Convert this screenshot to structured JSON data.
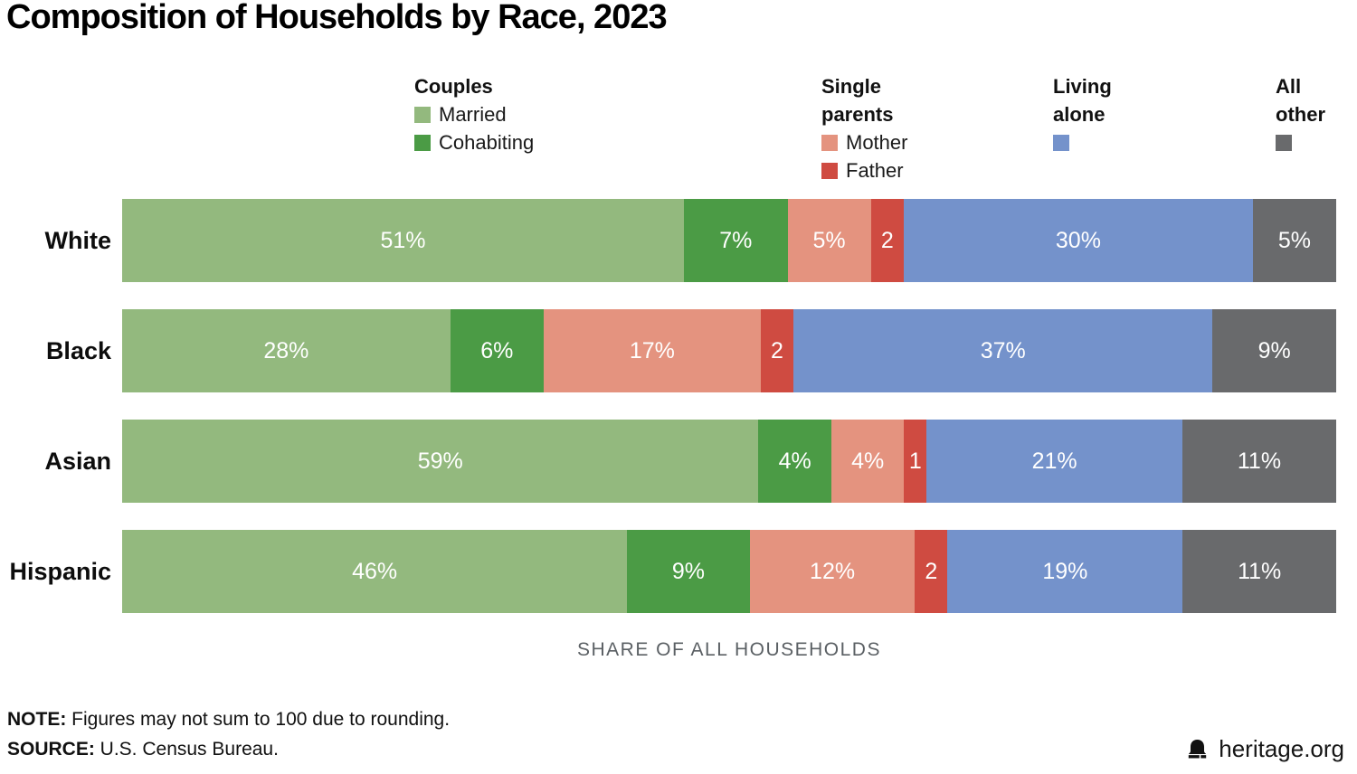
{
  "title": "Composition of Households by Race, 2023",
  "colors": {
    "married": "#93B97E",
    "cohabiting": "#4B9B45",
    "mother": "#E4937F",
    "father": "#CF4B41",
    "living_alone": "#7492CB",
    "all_other": "#696A6C"
  },
  "legend": {
    "groups": [
      {
        "title": "Couples",
        "items": [
          {
            "key": "married",
            "label": "Married"
          },
          {
            "key": "cohabiting",
            "label": "Cohabiting"
          }
        ]
      },
      {
        "title": "Single\nparents",
        "items": [
          {
            "key": "mother",
            "label": "Mother"
          },
          {
            "key": "father",
            "label": "Father"
          }
        ]
      },
      {
        "title": "Living\nalone",
        "items": [
          {
            "key": "living_alone",
            "label": ""
          }
        ]
      },
      {
        "title": "All\nother",
        "items": [
          {
            "key": "all_other",
            "label": ""
          }
        ]
      }
    ]
  },
  "chart_data": {
    "type": "bar",
    "stacked": true,
    "orientation": "horizontal",
    "categories": [
      "White",
      "Black",
      "Asian",
      "Hispanic"
    ],
    "series": [
      {
        "name": "Married",
        "key": "married",
        "color": "#93B97E",
        "values": [
          51,
          28,
          59,
          46
        ],
        "labels": [
          "51%",
          "28%",
          "59%",
          "46%"
        ]
      },
      {
        "name": "Cohabiting",
        "key": "cohabiting",
        "color": "#4B9B45",
        "values": [
          7,
          6,
          4,
          9
        ],
        "labels": [
          "7%",
          "6%",
          "4%",
          "9%"
        ]
      },
      {
        "name": "Mother",
        "key": "mother",
        "color": "#E4937F",
        "values": [
          5,
          17,
          4,
          12
        ],
        "labels": [
          "5%",
          "17%",
          "4%",
          "12%"
        ]
      },
      {
        "name": "Father",
        "key": "father",
        "color": "#CF4B41",
        "values": [
          2,
          2,
          1,
          2
        ],
        "labels": [
          "2",
          "2",
          "1",
          "2"
        ]
      },
      {
        "name": "Living alone",
        "key": "living_alone",
        "color": "#7492CB",
        "values": [
          30,
          37,
          21,
          19
        ],
        "labels": [
          "30%",
          "37%",
          "21%",
          "19%"
        ]
      },
      {
        "name": "All other",
        "key": "all_other",
        "color": "#696A6C",
        "values": [
          5,
          9,
          11,
          11
        ],
        "labels": [
          "5%",
          "9%",
          "11%",
          "11%"
        ]
      }
    ],
    "xlabel": "SHARE OF ALL HOUSEHOLDS",
    "xlim": [
      0,
      100
    ],
    "grid": false,
    "legend_position": "top"
  },
  "axis_label": "SHARE OF ALL HOUSEHOLDS",
  "footer": {
    "note_label": "NOTE:",
    "note_text": " Figures may not sum to 100 due to rounding.",
    "source_label": "SOURCE:",
    "source_text": " U.S. Census Bureau.",
    "brand": "heritage.org"
  }
}
